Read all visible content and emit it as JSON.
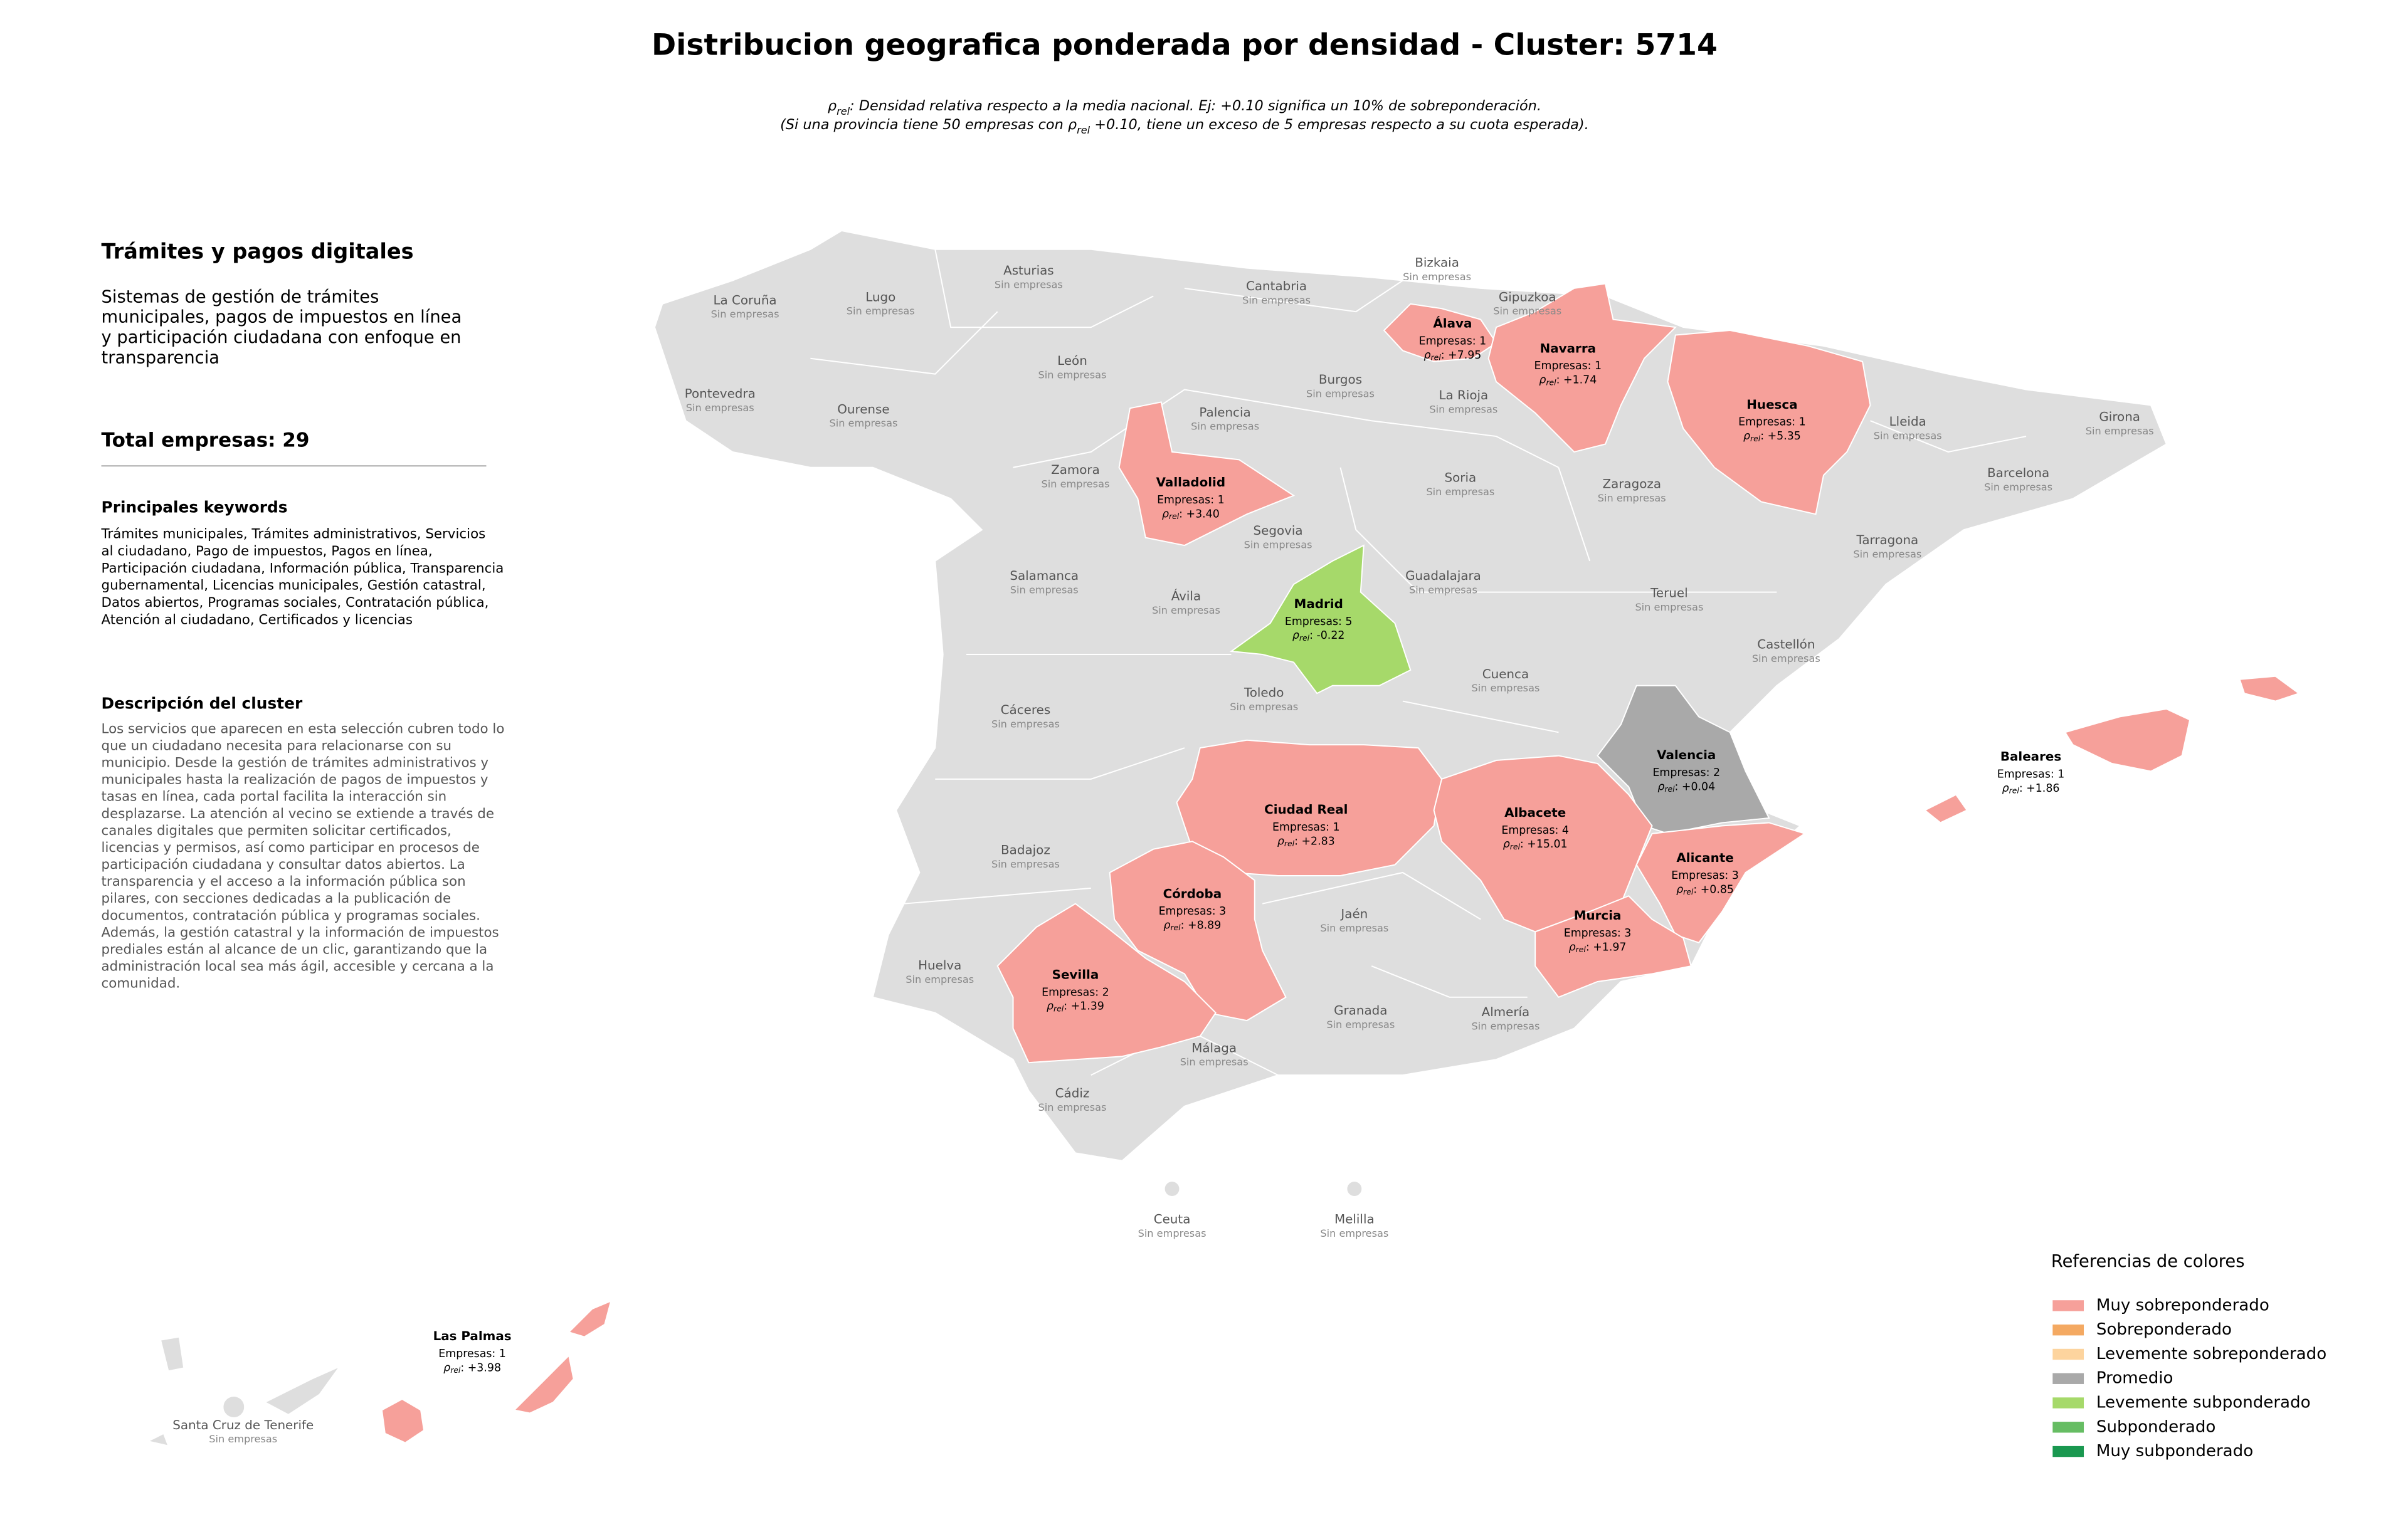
{
  "header": {
    "title": "Distribucion geografica ponderada por densidad - Cluster: 5714",
    "subtitle_lines": [
      [
        {
          "text": "ρ"
        },
        {
          "text": "rel",
          "subscript": true
        },
        {
          "text": ": Densidad relativa respecto a la media nacional. Ej: +0.10 significa un 10% de sobreponderación."
        }
      ],
      [
        {
          "text": "(Si una provincia tiene 50 empresas con "
        },
        {
          "text": "ρ"
        },
        {
          "text": "rel",
          "subscript": true
        },
        {
          "text": " +0.10, tiene un exceso de 5 empresas respecto a su cuota esperada)."
        }
      ]
    ]
  },
  "panel": {
    "heading": "Trámites y pagos digitales",
    "summary_lines": [
      "Sistemas de gestión de trámites",
      "municipales, pagos de impuestos en línea",
      "y participación ciudadana con enfoque en",
      "transparencia"
    ],
    "total": "Total empresas: 29",
    "keywords_heading": "Principales keywords",
    "keywords_lines": [
      "Trámites municipales, Trámites administrativos, Servicios",
      "al ciudadano, Pago de impuestos, Pagos en línea,",
      "Participación ciudadana, Información pública, Transparencia",
      "gubernamental, Licencias municipales, Gestión catastral,",
      "Datos abiertos, Programas sociales, Contratación pública,",
      "Atención al ciudadano, Certificados y licencias"
    ],
    "description_heading": "Descripción del cluster",
    "description_lines": [
      "Los servicios que aparecen en esta selección cubren todo lo",
      "que un ciudadano necesita para relacionarse con su",
      "municipio. Desde la gestión de trámites administrativos y",
      "municipales hasta la realización de pagos de impuestos y",
      "tasas en línea, cada portal facilita la interacción sin",
      "desplazarse. La atención al vecino se extiende a través de",
      "canales digitales que permiten solicitar certificados,",
      "licencias y permisos, así como participar en procesos de",
      "participación ciudadana y consultar datos abiertos. La",
      "transparencia y el acceso a la información pública son",
      "pilares, con secciones dedicadas a la publicación de",
      "documentos, contratación pública y programas sociales.",
      "Además, la gestión catastral y la información de impuestos",
      "prediales están al alcance de un clic, garantizando que la",
      "administración local sea más ágil, accesible y cercana a la",
      "comunidad."
    ]
  },
  "rho_symbol": "ρ",
  "rho_subscript": "rel",
  "provinces": [
    {
      "name": "La Coruña",
      "detail": "Sin empresas"
    },
    {
      "name": "Lugo",
      "detail": "Sin empresas"
    },
    {
      "name": "Asturias",
      "detail": "Sin empresas"
    },
    {
      "name": "Cantabria",
      "detail": "Sin empresas"
    },
    {
      "name": "Bizkaia",
      "detail": "Sin empresas"
    },
    {
      "name": "Gipuzkoa",
      "detail": "Sin empresas"
    },
    {
      "name": "Pontevedra",
      "detail": "Sin empresas"
    },
    {
      "name": "Ourense",
      "detail": "Sin empresas"
    },
    {
      "name": "León",
      "detail": "Sin empresas"
    },
    {
      "name": "Palencia",
      "detail": "Sin empresas"
    },
    {
      "name": "Burgos",
      "detail": "Sin empresas"
    },
    {
      "name": "La Rioja",
      "detail": "Sin empresas"
    },
    {
      "name": "Lleida",
      "detail": "Sin empresas"
    },
    {
      "name": "Girona",
      "detail": "Sin empresas"
    },
    {
      "name": "Zamora",
      "detail": "Sin empresas"
    },
    {
      "name": "Soria",
      "detail": "Sin empresas"
    },
    {
      "name": "Zaragoza",
      "detail": "Sin empresas"
    },
    {
      "name": "Barcelona",
      "detail": "Sin empresas"
    },
    {
      "name": "Segovia",
      "detail": "Sin empresas"
    },
    {
      "name": "Tarragona",
      "detail": "Sin empresas"
    },
    {
      "name": "Salamanca",
      "detail": "Sin empresas"
    },
    {
      "name": "Guadalajara",
      "detail": "Sin empresas"
    },
    {
      "name": "Ávila",
      "detail": "Sin empresas"
    },
    {
      "name": "Teruel",
      "detail": "Sin empresas"
    },
    {
      "name": "Castellón",
      "detail": "Sin empresas"
    },
    {
      "name": "Cuenca",
      "detail": "Sin empresas"
    },
    {
      "name": "Toledo",
      "detail": "Sin empresas"
    },
    {
      "name": "Cáceres",
      "detail": "Sin empresas"
    },
    {
      "name": "Badajoz",
      "detail": "Sin empresas"
    },
    {
      "name": "Jaén",
      "detail": "Sin empresas"
    },
    {
      "name": "Huelva",
      "detail": "Sin empresas"
    },
    {
      "name": "Granada",
      "detail": "Sin empresas"
    },
    {
      "name": "Almería",
      "detail": "Sin empresas"
    },
    {
      "name": "Málaga",
      "detail": "Sin empresas"
    },
    {
      "name": "Cádiz",
      "detail": "Sin empresas"
    },
    {
      "name": "Ceuta",
      "detail": "Sin empresas"
    },
    {
      "name": "Melilla",
      "detail": "Sin empresas"
    },
    {
      "name": "Santa Cruz de Tenerife",
      "detail": "Sin empresas"
    },
    {
      "name": "Álava",
      "detail": "Empresas: 1",
      "rho_label": ": +7.95",
      "category": 0
    },
    {
      "name": "Navarra",
      "detail": "Empresas: 1",
      "rho_label": ": +1.74",
      "category": 0
    },
    {
      "name": "Huesca",
      "detail": "Empresas: 1",
      "rho_label": ": +5.35",
      "category": 0
    },
    {
      "name": "Valladolid",
      "detail": "Empresas: 1",
      "rho_label": ": +3.40",
      "category": 0
    },
    {
      "name": "Madrid",
      "detail": "Empresas: 5",
      "rho_label": ": -0.22",
      "category": 4
    },
    {
      "name": "Valencia",
      "detail": "Empresas: 2",
      "rho_label": ": +0.04",
      "category": 3
    },
    {
      "name": "Baleares",
      "detail": "Empresas: 1",
      "rho_label": ": +1.86",
      "category": 0
    },
    {
      "name": "Ciudad Real",
      "detail": "Empresas: 1",
      "rho_label": ": +2.83",
      "category": 0
    },
    {
      "name": "Albacete",
      "detail": "Empresas: 4",
      "rho_label": ": +15.01",
      "category": 0
    },
    {
      "name": "Alicante",
      "detail": "Empresas: 3",
      "rho_label": ": +0.85",
      "category": 0
    },
    {
      "name": "Córdoba",
      "detail": "Empresas: 3",
      "rho_label": ": +8.89",
      "category": 0
    },
    {
      "name": "Murcia",
      "detail": "Empresas: 3",
      "rho_label": ": +1.97",
      "category": 0
    },
    {
      "name": "Sevilla",
      "detail": "Empresas: 2",
      "rho_label": ": +1.39",
      "category": 0
    },
    {
      "name": "Las Palmas",
      "detail": "Empresas: 1",
      "rho_label": ": +3.98",
      "category": 0
    }
  ],
  "legend": {
    "title": "Referencias de colores",
    "items": [
      {
        "label": "Muy sobreponderado",
        "color": "#f6a09a"
      },
      {
        "label": "Sobreponderado",
        "color": "#f4a962"
      },
      {
        "label": "Levemente sobreponderado",
        "color": "#fdd49e"
      },
      {
        "label": "Promedio",
        "color": "#a9a9a9"
      },
      {
        "label": "Levemente subponderado",
        "color": "#a6d96a"
      },
      {
        "label": "Subponderado",
        "color": "#66bd63"
      },
      {
        "label": "Muy subponderado",
        "color": "#1a9850"
      }
    ]
  }
}
